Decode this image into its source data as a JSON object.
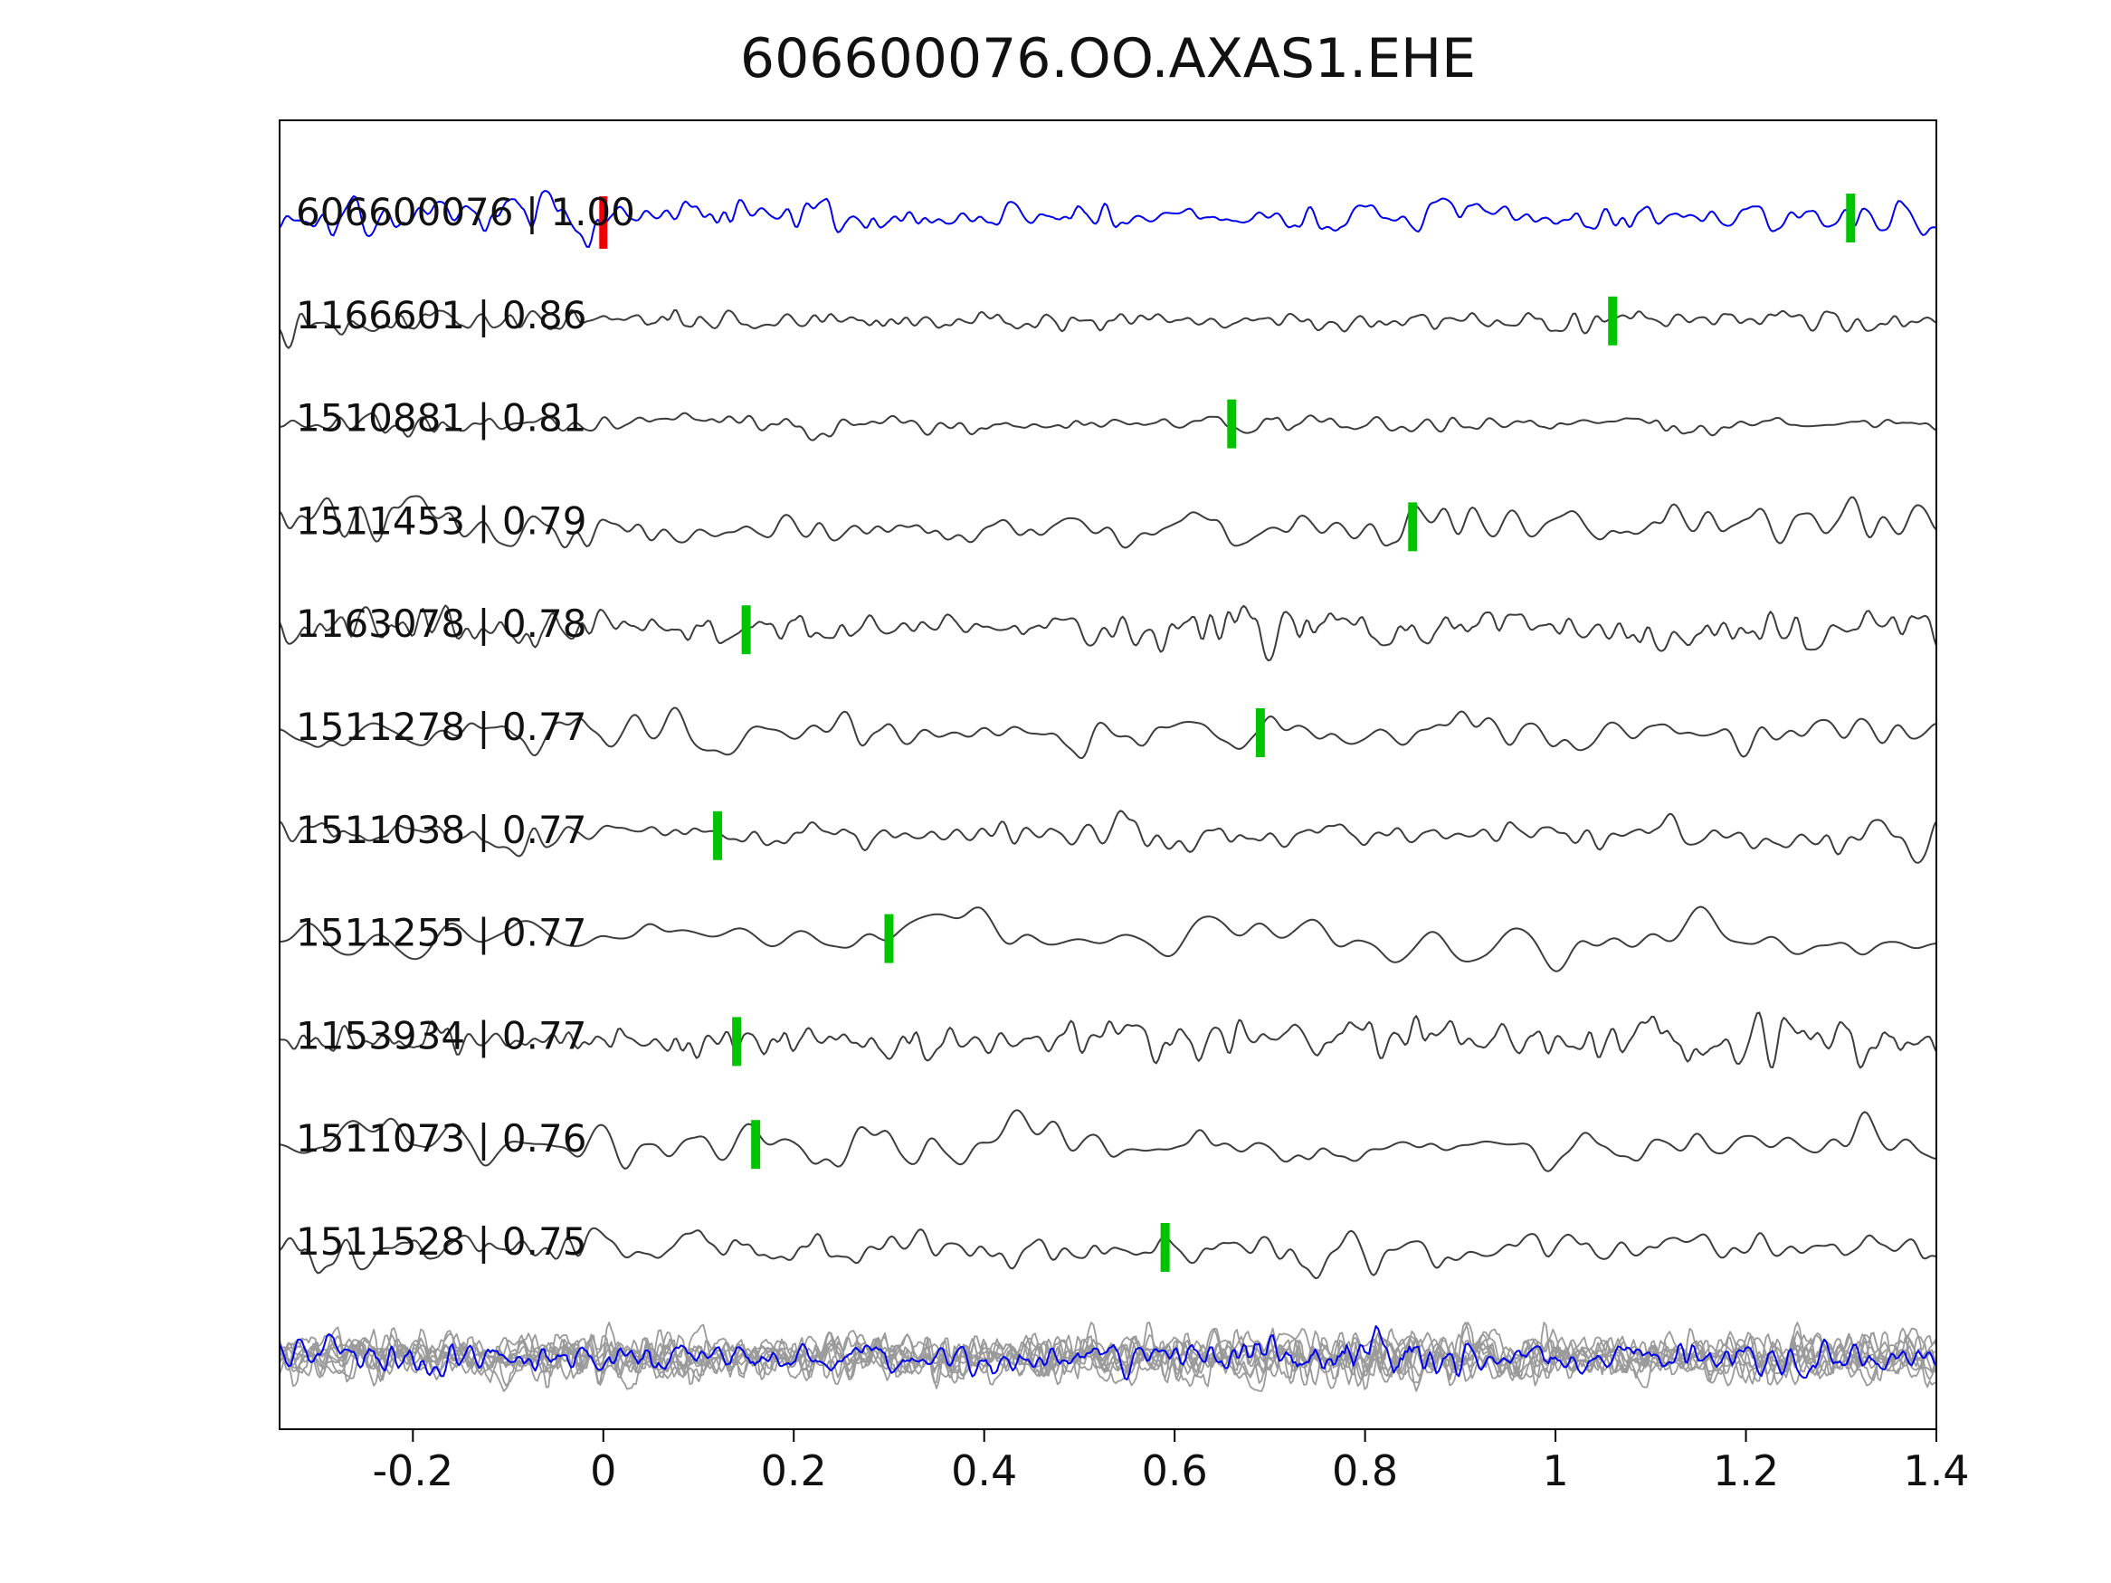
{
  "figure": {
    "title": "606600076.OO.AXAS1.EHE"
  },
  "chart_data": {
    "type": "line",
    "title": "606600076.OO.AXAS1.EHE",
    "xlabel": "",
    "ylabel": "",
    "xlim": [
      -0.34,
      1.4
    ],
    "grid": false,
    "x_ticks": [
      {
        "value": -0.2,
        "label": "-0.2"
      },
      {
        "value": 0,
        "label": "0"
      },
      {
        "value": 0.2,
        "label": "0.2"
      },
      {
        "value": 0.4,
        "label": "0.4"
      },
      {
        "value": 0.6,
        "label": "0.6"
      },
      {
        "value": 0.8,
        "label": "0.8"
      },
      {
        "value": 1,
        "label": "1"
      },
      {
        "value": 1.2,
        "label": "1.2"
      },
      {
        "value": 1.4,
        "label": "1.4"
      }
    ],
    "colors": {
      "template_trace": "#0000ee",
      "detection_trace": "#3c3c3c",
      "stack_member_trace": "#9a9a9a",
      "stack_highlight_trace": "#0000ee",
      "pick_marker": "#00c400",
      "origin_marker": "#ee0000",
      "axis": "#000000",
      "text": "#111111"
    },
    "traces": [
      {
        "id": "606600076",
        "label": "606600076 | 1.00",
        "correlation": 1.0,
        "role": "template",
        "pick_time": 1.31,
        "origin_time": 0.0,
        "seed": 7,
        "passes": 4,
        "amp": 32
      },
      {
        "id": "1166601",
        "label": "1166601 | 0.86",
        "correlation": 0.86,
        "role": "detection",
        "pick_time": 1.06,
        "seed": 13,
        "passes": 4,
        "amp": 30
      },
      {
        "id": "1510881",
        "label": "1510881 | 0.81",
        "correlation": 0.81,
        "role": "detection",
        "pick_time": 0.66,
        "seed": 21,
        "passes": 6,
        "amp": 18
      },
      {
        "id": "1511453",
        "label": "1511453 | 0.79",
        "correlation": 0.79,
        "role": "detection",
        "pick_time": 0.85,
        "seed": 31,
        "passes": 12,
        "amp": 34
      },
      {
        "id": "1163078",
        "label": "1163078 | 0.78",
        "correlation": 0.78,
        "role": "detection",
        "pick_time": 0.15,
        "seed": 43,
        "passes": 4,
        "amp": 34
      },
      {
        "id": "1511278",
        "label": "1511278 | 0.77",
        "correlation": 0.77,
        "role": "detection",
        "pick_time": 0.69,
        "seed": 55,
        "passes": 16,
        "amp": 28
      },
      {
        "id": "1511038",
        "label": "1511038 | 0.77",
        "correlation": 0.77,
        "role": "detection",
        "pick_time": 0.12,
        "seed": 61,
        "passes": 8,
        "amp": 30
      },
      {
        "id": "1511255",
        "label": "1511255 | 0.77",
        "correlation": 0.77,
        "role": "detection",
        "pick_time": 0.3,
        "seed": 71,
        "passes": 40,
        "amp": 36
      },
      {
        "id": "1153934",
        "label": "1153934 | 0.77",
        "correlation": 0.77,
        "role": "detection",
        "pick_time": 0.14,
        "seed": 83,
        "passes": 4,
        "amp": 32
      },
      {
        "id": "1511073",
        "label": "1511073 | 0.76",
        "correlation": 0.76,
        "role": "detection",
        "pick_time": 0.16,
        "seed": 91,
        "passes": 20,
        "amp": 38
      },
      {
        "id": "1511528",
        "label": "1511528 | 0.75",
        "correlation": 0.75,
        "role": "detection",
        "pick_time": 0.59,
        "seed": 101,
        "passes": 8,
        "amp": 34
      }
    ],
    "stack": {
      "n_members": 9,
      "member_seed_base": 200,
      "member_passes": 2,
      "member_amp": 38,
      "highlight_seed": 113,
      "highlight_passes": 2,
      "highlight_amp": 34
    }
  }
}
